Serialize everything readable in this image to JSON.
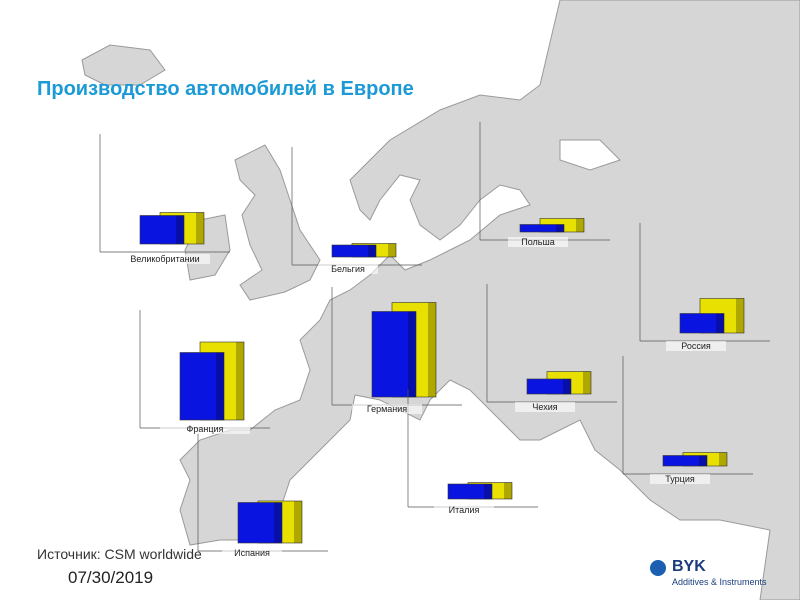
{
  "title": "Производство автомобилей в Европе",
  "source": "Источник: CSM worldwide",
  "date": "07/30/2019",
  "logo": {
    "name": "BYK",
    "subtitle": "Additives & Instruments"
  },
  "chart_data": [
    {
      "type": "bar",
      "title": "Великобритании",
      "values": [
        1.9,
        2.1
      ],
      "colors": [
        "#0a14e0",
        "#e8e000"
      ]
    },
    {
      "type": "bar",
      "title": "Бельгия",
      "values": [
        0.8,
        0.9
      ],
      "colors": [
        "#0a14e0",
        "#e8e000"
      ]
    },
    {
      "type": "bar",
      "title": "Польша",
      "values": [
        0.5,
        0.9
      ],
      "colors": [
        "#0a14e0",
        "#e8e000"
      ]
    },
    {
      "type": "bar",
      "title": "Франция",
      "values": [
        4.5,
        5.2
      ],
      "colors": [
        "#0a14e0",
        "#e8e000"
      ]
    },
    {
      "type": "bar",
      "title": "Германия",
      "values": [
        5.7,
        6.3
      ],
      "colors": [
        "#0a14e0",
        "#e8e000"
      ]
    },
    {
      "type": "bar",
      "title": "Чехия",
      "values": [
        1.0,
        1.5
      ],
      "colors": [
        "#0a14e0",
        "#e8e000"
      ]
    },
    {
      "type": "bar",
      "title": "Россия",
      "values": [
        1.3,
        2.3
      ],
      "colors": [
        "#0a14e0",
        "#e8e000"
      ]
    },
    {
      "type": "bar",
      "title": "Турция",
      "values": [
        0.7,
        0.9
      ],
      "colors": [
        "#0a14e0",
        "#e8e000"
      ]
    },
    {
      "type": "bar",
      "title": "Италия",
      "values": [
        1.0,
        1.1
      ],
      "colors": [
        "#0a14e0",
        "#e8e000"
      ]
    },
    {
      "type": "bar",
      "title": "Испания",
      "values": [
        2.7,
        2.8
      ],
      "colors": [
        "#0a14e0",
        "#e8e000"
      ]
    }
  ]
}
